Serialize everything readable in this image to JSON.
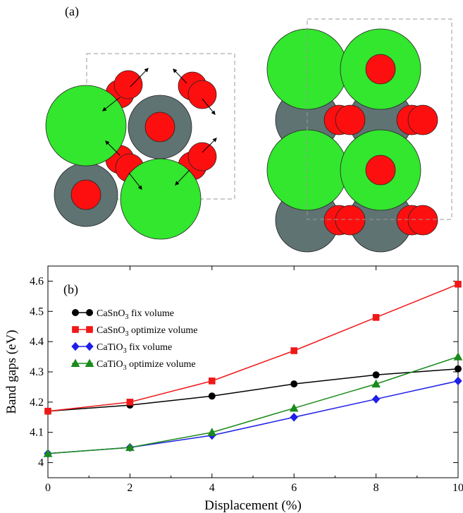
{
  "panel_a": {
    "label": "(a)",
    "colors": {
      "ca": "#33e62e",
      "sn": "#5f7372",
      "o": "#fd0f0f"
    }
  },
  "chart_data": {
    "type": "line",
    "panel_label": "(b)",
    "xlabel": "Displacement (%)",
    "ylabel": "Band gaps (eV)",
    "xlim": [
      0,
      10
    ],
    "ylim": [
      3.95,
      4.65
    ],
    "x_ticks": [
      "0",
      "2",
      "4",
      "6",
      "8",
      "10"
    ],
    "y_ticks": [
      "4",
      "4.1",
      "4.2",
      "4.3",
      "4.4",
      "4.5",
      "4.6"
    ],
    "x": [
      0,
      2,
      4,
      6,
      8,
      10
    ],
    "legend_placement": "top-left",
    "grid": false,
    "series": [
      {
        "name": "CaSnO₃ fix volume",
        "base": "CaSnO",
        "sub": "3",
        "rest": " fix volume",
        "color": "#000000",
        "marker": "circle",
        "values": [
          4.17,
          4.19,
          4.22,
          4.26,
          4.29,
          4.31
        ]
      },
      {
        "name": "CaSnO₃ optimize volume",
        "base": "CaSnO",
        "sub": "3",
        "rest": " optimize volume",
        "color": "#f01818",
        "marker": "square",
        "values": [
          4.17,
          4.2,
          4.27,
          4.37,
          4.48,
          4.59
        ]
      },
      {
        "name": "CaTiO₃ fix volume",
        "base": "CaTiO",
        "sub": "3",
        "rest": " fix volume",
        "color": "#1f1fe8",
        "marker": "diamond",
        "values": [
          4.03,
          4.05,
          4.09,
          4.15,
          4.21,
          4.27
        ]
      },
      {
        "name": "CaTiO₃ optimize volume",
        "base": "CaTiO",
        "sub": "3",
        "rest": " optimize volume",
        "color": "#1a8a1a",
        "marker": "triangle",
        "values": [
          4.03,
          4.05,
          4.1,
          4.18,
          4.26,
          4.35
        ]
      }
    ]
  }
}
